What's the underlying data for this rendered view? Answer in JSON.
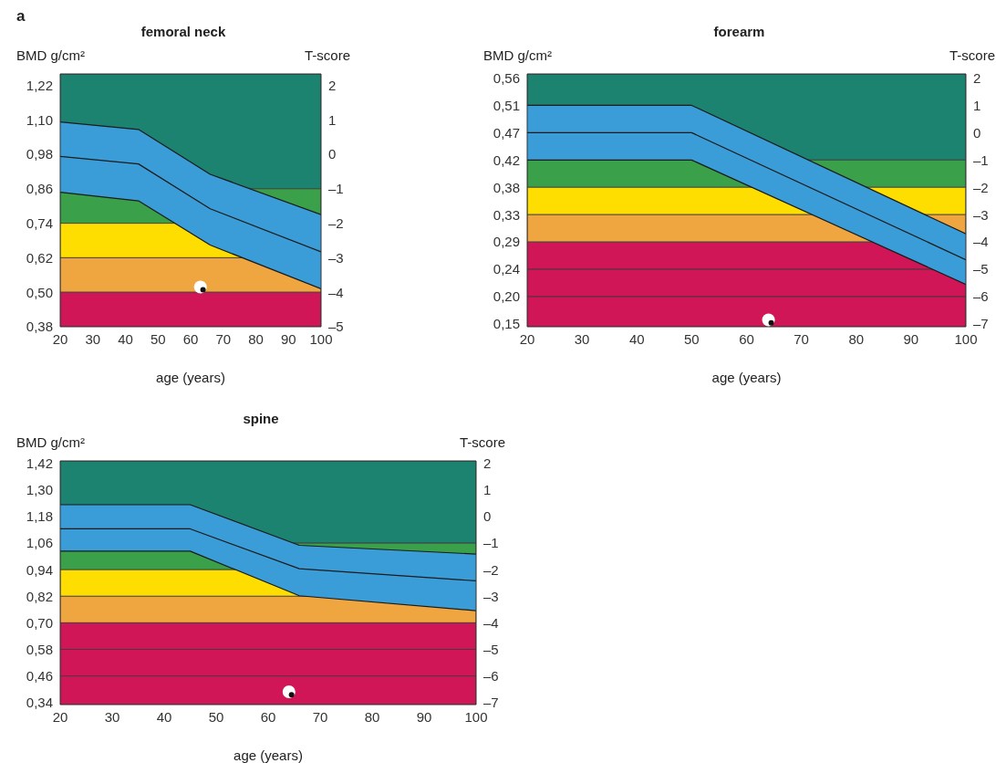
{
  "chart_data": [
    {
      "type": "line",
      "title": "femoral neck",
      "xlabel": "age (years)",
      "ylabel": "BMD g/cm²",
      "y2label": "T-score",
      "annotations": [
        "a"
      ],
      "xlim": [
        20,
        100
      ],
      "xticks": [
        20,
        30,
        40,
        50,
        60,
        70,
        80,
        90,
        100
      ],
      "ylim": [
        0.38,
        1.26
      ],
      "yticks": [
        {
          "value": 1.22,
          "label": "1,22"
        },
        {
          "value": 1.1,
          "label": "1,10"
        },
        {
          "value": 0.98,
          "label": "0,98"
        },
        {
          "value": 0.86,
          "label": "0,86"
        },
        {
          "value": 0.74,
          "label": "0,74"
        },
        {
          "value": 0.62,
          "label": "0,62"
        },
        {
          "value": 0.5,
          "label": "0,50"
        },
        {
          "value": 0.38,
          "label": "0,38"
        }
      ],
      "y2lim": [
        -5,
        2.33
      ],
      "y2ticks": [
        2,
        1,
        0,
        {
          "value": -1,
          "label": "–1"
        },
        {
          "value": -2,
          "label": "–2"
        },
        {
          "value": -3,
          "label": "–3"
        },
        {
          "value": -4,
          "label": "–4"
        },
        {
          "value": -5,
          "label": "–5"
        }
      ],
      "bands": [
        {
          "axis": "y2",
          "from": -1,
          "to": 2.33,
          "color": "#1b8370"
        },
        {
          "axis": "y2",
          "from": -2,
          "to": -1,
          "color": "#3aa04a"
        },
        {
          "axis": "y2",
          "from": -3,
          "to": -2,
          "color": "#fedd00"
        },
        {
          "axis": "y2",
          "from": -4,
          "to": -3,
          "color": "#f0a640"
        },
        {
          "axis": "y2",
          "from": -5,
          "to": -4,
          "color": "#d01656"
        }
      ],
      "series": [
        {
          "type": "line",
          "axis": "y2",
          "color": "#1a1a1a",
          "x": [
            20,
            44,
            66,
            100
          ],
          "values": [
            -0.06,
            -0.28,
            -1.58,
            -2.83
          ],
          "lower": [
            -1.1,
            -1.35,
            -2.63,
            -3.9
          ],
          "upper": [
            0.94,
            0.72,
            -0.58,
            -1.75
          ]
        },
        {
          "type": "line",
          "axis": "y2",
          "color": "#1a1a1a",
          "x": [
            20,
            44,
            66,
            100
          ],
          "values": [
            0.94,
            0.72,
            -0.58,
            -1.75
          ]
        },
        {
          "type": "line",
          "axis": "y2",
          "color": "#1a1a1a",
          "x": [
            20,
            44,
            66,
            100
          ],
          "values": [
            -1.1,
            -1.35,
            -2.63,
            -3.9
          ]
        },
        {
          "type": "scatter",
          "axis": "y2",
          "color": "#ffffff",
          "x": [
            63
          ],
          "values": [
            -3.85
          ]
        },
        {
          "type": "scatter",
          "axis": "y2",
          "color": "#111111",
          "x": [
            63.8
          ],
          "values": [
            -3.93
          ]
        }
      ]
    },
    {
      "type": "line",
      "title": "forearm",
      "xlabel": "age (years)",
      "ylabel": "BMD g/cm²",
      "y2label": "T-score",
      "xlim": [
        20,
        100
      ],
      "xticks": [
        20,
        30,
        40,
        50,
        60,
        70,
        80,
        90,
        100
      ],
      "ylim": [
        0.1454,
        0.5668
      ],
      "yticks": [
        {
          "value": 0.56,
          "label": "0,56"
        },
        {
          "value": 0.5144,
          "label": "0,51"
        },
        {
          "value": 0.4689,
          "label": "0,47"
        },
        {
          "value": 0.4233,
          "label": "0,42"
        },
        {
          "value": 0.3778,
          "label": "0,38"
        },
        {
          "value": 0.3322,
          "label": "0,33"
        },
        {
          "value": 0.2867,
          "label": "0,29"
        },
        {
          "value": 0.2411,
          "label": "0,24"
        },
        {
          "value": 0.1956,
          "label": "0,20"
        },
        {
          "value": 0.15,
          "label": "0,15"
        }
      ],
      "y2lim": [
        -7.1,
        2.15
      ],
      "y2ticks": [
        2,
        1,
        0,
        {
          "value": -1,
          "label": "–1"
        },
        {
          "value": -2,
          "label": "–2"
        },
        {
          "value": -3,
          "label": "–3"
        },
        {
          "value": -4,
          "label": "–4"
        },
        {
          "value": -5,
          "label": "–5"
        },
        {
          "value": -6,
          "label": "–6"
        },
        {
          "value": -7,
          "label": "–7"
        }
      ],
      "bands": [
        {
          "axis": "y2",
          "from": -1,
          "to": 2.15,
          "color": "#1b8370"
        },
        {
          "axis": "y2",
          "from": -2,
          "to": -1,
          "color": "#3aa04a"
        },
        {
          "axis": "y2",
          "from": -3,
          "to": -2,
          "color": "#fedd00"
        },
        {
          "axis": "y2",
          "from": -4,
          "to": -3,
          "color": "#f0a640"
        },
        {
          "axis": "y2",
          "from": -5,
          "to": -4,
          "color": "#d01656"
        },
        {
          "axis": "y2",
          "from": -6,
          "to": -5,
          "color": "#d01656"
        },
        {
          "axis": "y2",
          "from": -7.1,
          "to": -6,
          "color": "#d01656"
        }
      ],
      "series": [
        {
          "type": "line",
          "axis": "y2",
          "color": "#1a1a1a",
          "x": [
            20,
            50,
            100
          ],
          "values": [
            0,
            0,
            -4.65
          ],
          "lower": [
            -1,
            -1,
            -5.55
          ],
          "upper": [
            1,
            1,
            -3.7
          ]
        },
        {
          "type": "line",
          "axis": "y2",
          "color": "#1a1a1a",
          "x": [
            20,
            50,
            100
          ],
          "values": [
            1,
            1,
            -3.7
          ]
        },
        {
          "type": "line",
          "axis": "y2",
          "color": "#1a1a1a",
          "x": [
            20,
            50,
            100
          ],
          "values": [
            -1,
            -1,
            -5.55
          ]
        },
        {
          "type": "scatter",
          "axis": "y2",
          "color": "#ffffff",
          "x": [
            64
          ],
          "values": [
            -6.85
          ]
        },
        {
          "type": "scatter",
          "axis": "y2",
          "color": "#111111",
          "x": [
            64.5
          ],
          "values": [
            -6.96
          ]
        }
      ]
    },
    {
      "type": "line",
      "title": "spine",
      "xlabel": "age (years)",
      "ylabel": "BMD g/cm²",
      "y2label": "T-score",
      "xlim": [
        20,
        100
      ],
      "xticks": [
        20,
        30,
        40,
        50,
        60,
        70,
        80,
        90,
        100
      ],
      "ylim": [
        0.3304,
        1.432
      ],
      "yticks": [
        {
          "value": 1.42,
          "label": "1,42"
        },
        {
          "value": 1.3,
          "label": "1,30"
        },
        {
          "value": 1.18,
          "label": "1,18"
        },
        {
          "value": 1.06,
          "label": "1,06"
        },
        {
          "value": 0.94,
          "label": "0,94"
        },
        {
          "value": 0.82,
          "label": "0,82"
        },
        {
          "value": 0.7,
          "label": "0,70"
        },
        {
          "value": 0.58,
          "label": "0,58"
        },
        {
          "value": 0.46,
          "label": "0,46"
        },
        {
          "value": 0.34,
          "label": "0,34"
        }
      ],
      "y2lim": [
        -7.08,
        2.1
      ],
      "y2ticks": [
        2,
        1,
        0,
        {
          "value": -1,
          "label": "–1"
        },
        {
          "value": -2,
          "label": "–2"
        },
        {
          "value": -3,
          "label": "–3"
        },
        {
          "value": -4,
          "label": "–4"
        },
        {
          "value": -5,
          "label": "–5"
        },
        {
          "value": -6,
          "label": "–6"
        },
        {
          "value": -7,
          "label": "–7"
        }
      ],
      "bands": [
        {
          "axis": "y2",
          "from": -1,
          "to": 2.1,
          "color": "#1b8370"
        },
        {
          "axis": "y2",
          "from": -2,
          "to": -1,
          "color": "#3aa04a"
        },
        {
          "axis": "y2",
          "from": -3,
          "to": -2,
          "color": "#fedd00"
        },
        {
          "axis": "y2",
          "from": -4,
          "to": -3,
          "color": "#f0a640"
        },
        {
          "axis": "y2",
          "from": -5,
          "to": -4,
          "color": "#d01656"
        },
        {
          "axis": "y2",
          "from": -6,
          "to": -5,
          "color": "#d01656"
        },
        {
          "axis": "y2",
          "from": -7.08,
          "to": -6,
          "color": "#d01656"
        }
      ],
      "series": [
        {
          "type": "line",
          "axis": "y2",
          "color": "#1a1a1a",
          "x": [
            20,
            45,
            66,
            100
          ],
          "values": [
            -0.46,
            -0.46,
            -1.96,
            -2.42
          ],
          "lower": [
            -1.3,
            -1.3,
            -2.98,
            -3.54
          ],
          "upper": [
            0.45,
            0.45,
            -1.08,
            -1.41
          ]
        },
        {
          "type": "line",
          "axis": "y2",
          "color": "#1a1a1a",
          "x": [
            20,
            45,
            66,
            100
          ],
          "values": [
            0.45,
            0.45,
            -1.08,
            -1.41
          ]
        },
        {
          "type": "line",
          "axis": "y2",
          "color": "#1a1a1a",
          "x": [
            20,
            45,
            66,
            100
          ],
          "values": [
            -1.3,
            -1.3,
            -2.98,
            -3.54
          ]
        },
        {
          "type": "scatter",
          "axis": "y2",
          "color": "#ffffff",
          "x": [
            64
          ],
          "values": [
            -6.6
          ]
        },
        {
          "type": "scatter",
          "axis": "y2",
          "color": "#111111",
          "x": [
            64.5
          ],
          "values": [
            -6.71
          ]
        }
      ]
    }
  ]
}
